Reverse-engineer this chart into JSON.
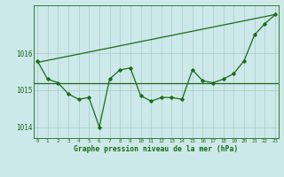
{
  "title": "Graphe pression niveau de la mer (hPa)",
  "bg_color": "#cce8e8",
  "line_color": "#1a6b1a",
  "grid_color": "#aacccc",
  "x_values": [
    0,
    1,
    2,
    3,
    4,
    5,
    6,
    7,
    8,
    9,
    10,
    11,
    12,
    13,
    14,
    15,
    16,
    17,
    18,
    19,
    20,
    21,
    22,
    23
  ],
  "pressure": [
    1015.8,
    1015.3,
    1015.2,
    1014.9,
    1014.75,
    1014.8,
    1014.0,
    1015.3,
    1015.55,
    1015.6,
    1014.85,
    1014.7,
    1014.8,
    1014.8,
    1014.75,
    1015.55,
    1015.25,
    1015.2,
    1015.3,
    1015.45,
    1015.8,
    1016.5,
    1016.8,
    1017.05
  ],
  "horiz_y": 1015.2,
  "trend_x": [
    0,
    23
  ],
  "trend_y": [
    1015.75,
    1017.05
  ],
  "ylim": [
    1013.7,
    1017.3
  ],
  "yticks": [
    1014,
    1015,
    1016
  ],
  "xlim": [
    -0.3,
    23.3
  ]
}
